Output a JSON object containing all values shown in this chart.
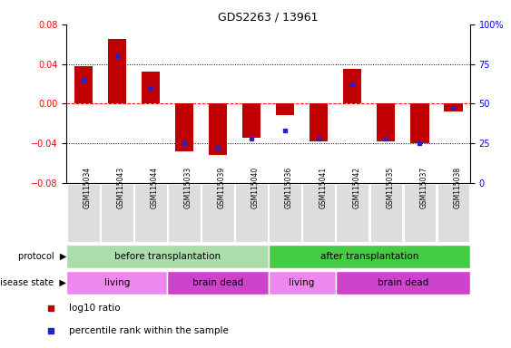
{
  "title": "GDS2263 / 13961",
  "samples": [
    "GSM115034",
    "GSM115043",
    "GSM115044",
    "GSM115033",
    "GSM115039",
    "GSM115040",
    "GSM115036",
    "GSM115041",
    "GSM115042",
    "GSM115035",
    "GSM115037",
    "GSM115038"
  ],
  "log10_ratio": [
    0.038,
    0.065,
    0.032,
    -0.048,
    -0.052,
    -0.035,
    -0.012,
    -0.038,
    0.035,
    -0.038,
    -0.04,
    -0.008
  ],
  "percentile_rank": [
    65,
    80,
    60,
    25,
    22,
    28,
    33,
    28,
    62,
    28,
    25,
    47
  ],
  "ylim": [
    -0.08,
    0.08
  ],
  "yticks_left": [
    -0.08,
    -0.04,
    0,
    0.04,
    0.08
  ],
  "yticks_right": [
    0,
    25,
    50,
    75,
    100
  ],
  "bar_color": "#c00000",
  "dot_color": "#2222cc",
  "bg_color": "#ffffff",
  "protocol_before_color": "#aaddaa",
  "protocol_after_color": "#44cc44",
  "living_color": "#ee88ee",
  "braindead_color": "#cc44cc",
  "label_row1_left": "protocol",
  "label_row2_left": "disease state",
  "legend_red": "log10 ratio",
  "legend_blue": "percentile rank within the sample"
}
